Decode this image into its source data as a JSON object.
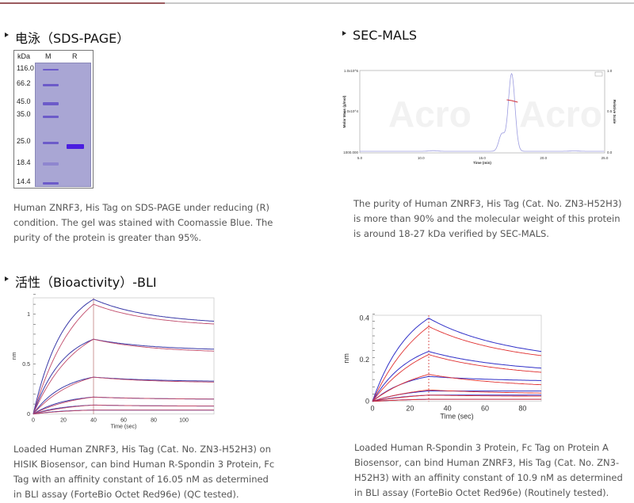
{
  "sds_page": {
    "title": "电泳（SDS-PAGE）",
    "gel": {
      "unit_label": "kDa",
      "lane_labels": [
        "M",
        "R"
      ],
      "marker_kda": [
        "116.0",
        "66.2",
        "45.0",
        "35.0",
        "25.0",
        "18.4",
        "14.4"
      ]
    },
    "caption": "Human ZNRF3, His Tag on SDS-PAGE under reducing (R) condition. The gel was stained with Coomassie Blue. The purity of the protein is greater than 95%."
  },
  "sec_mals": {
    "title": "SEC-MALS",
    "caption": "The purity of Human ZNRF3, His Tag (Cat. No. ZN3-H52H3) is more than 90% and the molecular weight of this protein is around 18-27 kDa verified by SEC-MALS.",
    "chart_data": {
      "type": "line",
      "xlabel": "Time (min)",
      "ylabel": "Molar Mass (g/mol)",
      "y2label": "Relative Scale",
      "x_ticks": [
        "5.0",
        "10.0",
        "15.0",
        "20.0",
        "25.0"
      ],
      "y_ticks": [
        "1000.000",
        "1.0x10^4",
        "1.0x10^5"
      ],
      "y2_ticks": [
        "0.0",
        "0.5",
        "1.0"
      ],
      "xlim": [
        5,
        25
      ],
      "y_scale": "log",
      "peak_time": 17.4,
      "watermark": "Acro",
      "colors": {
        "trace": "#9c9ce0",
        "molar_mass": "#d0303a"
      }
    }
  },
  "bioactivity": {
    "title": "活性（Bioactivity）-BLI",
    "left": {
      "caption": "Loaded Human ZNRF3, His Tag (Cat. No. ZN3-H52H3) on HISIK Biosensor, can bind Human R-Spondin 3 Protein, Fc Tag with an affinity constant of 16.05 nM as determined in BLI assay (ForteBio Octet Red96e) (QC tested).",
      "chart_data": {
        "type": "line",
        "xlabel": "Time (sec)",
        "ylabel": "nm",
        "x_ticks": [
          "0",
          "20",
          "40",
          "60",
          "80",
          "100"
        ],
        "y_ticks": [
          "0",
          "0.5",
          "1"
        ],
        "xlim": [
          0,
          120
        ],
        "ylim": [
          0,
          1.2
        ],
        "association_end": 40,
        "series_peak_nm": [
          1.15,
          0.75,
          0.37,
          0.17,
          0.09,
          0.04
        ],
        "series_end_nm": [
          0.93,
          0.65,
          0.33,
          0.15,
          0.08,
          0.04
        ],
        "colors": {
          "data": "#3a3aa8",
          "fit": "#c04a6a"
        }
      }
    },
    "right": {
      "caption": "Loaded Human R-Spondin 3 Protein, Fc Tag on Protein A Biosensor, can bind Human ZNRF3, His Tag (Cat. No. ZN3-H52H3) with an affinity constant of 10.9 nM as determined in BLI assay (ForteBio Octet Red96e) (Routinely tested).",
      "chart_data": {
        "type": "line",
        "xlabel": "Time (sec)",
        "ylabel": "nm",
        "x_ticks": [
          "0",
          "20",
          "40",
          "60",
          "80"
        ],
        "y_ticks": [
          "0",
          "0.2",
          "0.4"
        ],
        "xlim": [
          0,
          90
        ],
        "ylim": [
          0,
          0.42
        ],
        "association_end": 30,
        "series_peak_nm": [
          0.4,
          0.24,
          0.12,
          0.05,
          0.03,
          0.01
        ],
        "series_end_nm": [
          0.24,
          0.16,
          0.1,
          0.05,
          0.03,
          0.01
        ],
        "fit_peak_nm": [
          0.36,
          0.225,
          0.13,
          0.055,
          0.03,
          0.01
        ],
        "fit_end_nm": [
          0.22,
          0.14,
          0.08,
          0.04,
          0.025,
          0.01
        ],
        "colors": {
          "data": "#3030c8",
          "fit": "#e03030"
        }
      }
    }
  }
}
